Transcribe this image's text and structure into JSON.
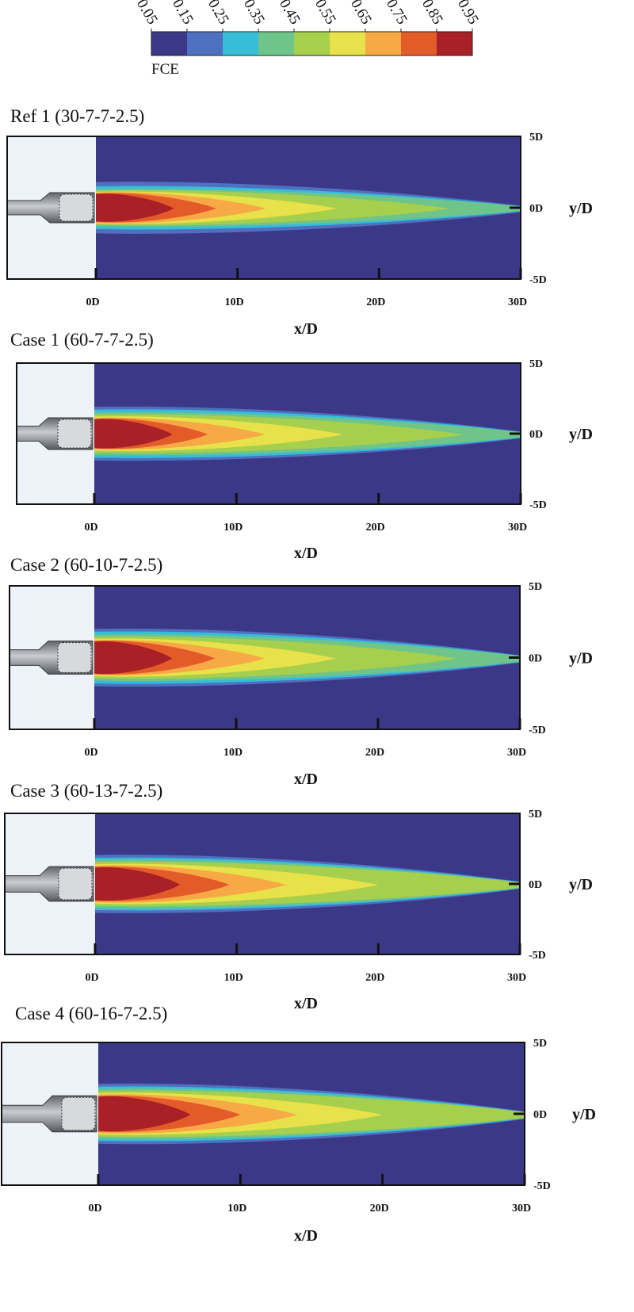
{
  "colorbar": {
    "label": "FCE",
    "ticks": [
      "0.05",
      "0.15",
      "0.25",
      "0.35",
      "0.45",
      "0.55",
      "0.65",
      "0.75",
      "0.85",
      "0.95"
    ],
    "colors": [
      "#3b3987",
      "#4f6fc0",
      "#36bed6",
      "#6fc48a",
      "#a7cf4e",
      "#e7e14a",
      "#f6a944",
      "#e45b2a",
      "#a92026"
    ]
  },
  "chart_data": [
    {
      "type": "heatmap",
      "title": "Ref 1 (30-7-7-2.5)",
      "xlabel": "x/D",
      "ylabel": "y/D",
      "xticks": [
        "0D",
        "10D",
        "20D",
        "30D"
      ],
      "yticks": [
        "5D",
        "0D",
        "-5D"
      ],
      "xlim": [
        0,
        30
      ],
      "ylim": [
        -5,
        5
      ],
      "nozzle_scale": 1.0,
      "contours": [
        {
          "level": 0.15,
          "length": 30.0,
          "halfwidth": 1.8
        },
        {
          "level": 0.25,
          "length": 30.0,
          "halfwidth": 1.5
        },
        {
          "level": 0.35,
          "length": 30.0,
          "halfwidth": 1.3
        },
        {
          "level": 0.45,
          "length": 25.0,
          "halfwidth": 1.2
        },
        {
          "level": 0.55,
          "length": 17.0,
          "halfwidth": 1.1
        },
        {
          "level": 0.65,
          "length": 12.0,
          "halfwidth": 1.05
        },
        {
          "level": 0.75,
          "length": 8.5,
          "halfwidth": 1.0
        },
        {
          "level": 0.85,
          "length": 5.5,
          "halfwidth": 0.95
        },
        {
          "level": 0.95,
          "length": 3.2,
          "halfwidth": 0.85
        }
      ]
    },
    {
      "type": "heatmap",
      "title": "Case 1 (60-7-7-2.5)",
      "xlabel": "x/D",
      "ylabel": "y/D",
      "xticks": [
        "0D",
        "10D",
        "20D",
        "30D"
      ],
      "yticks": [
        "5D",
        "0D",
        "-5D"
      ],
      "xlim": [
        0,
        30
      ],
      "ylim": [
        -5,
        5
      ],
      "nozzle_scale": 1.05,
      "contours": [
        {
          "level": 0.15,
          "length": 30.0,
          "halfwidth": 1.9
        },
        {
          "level": 0.25,
          "length": 30.0,
          "halfwidth": 1.7
        },
        {
          "level": 0.35,
          "length": 30.0,
          "halfwidth": 1.5
        },
        {
          "level": 0.45,
          "length": 26.0,
          "halfwidth": 1.35
        },
        {
          "level": 0.55,
          "length": 17.5,
          "halfwidth": 1.2
        },
        {
          "level": 0.65,
          "length": 12.0,
          "halfwidth": 1.1
        },
        {
          "level": 0.75,
          "length": 8.0,
          "halfwidth": 1.05
        },
        {
          "level": 0.85,
          "length": 5.5,
          "halfwidth": 1.0
        },
        {
          "level": 0.95,
          "length": 3.0,
          "halfwidth": 0.9
        }
      ]
    },
    {
      "type": "heatmap",
      "title": "Case 2 (60-10-7-2.5)",
      "xlabel": "x/D",
      "ylabel": "y/D",
      "xticks": [
        "0D",
        "10D",
        "20D",
        "30D"
      ],
      "yticks": [
        "5D",
        "0D",
        "-5D"
      ],
      "xlim": [
        0,
        30
      ],
      "ylim": [
        -5,
        5
      ],
      "nozzle_scale": 1.1,
      "contours": [
        {
          "level": 0.15,
          "length": 30.0,
          "halfwidth": 2.0
        },
        {
          "level": 0.25,
          "length": 30.0,
          "halfwidth": 1.8
        },
        {
          "level": 0.35,
          "length": 30.0,
          "halfwidth": 1.6
        },
        {
          "level": 0.45,
          "length": 25.5,
          "halfwidth": 1.45
        },
        {
          "level": 0.55,
          "length": 17.0,
          "halfwidth": 1.3
        },
        {
          "level": 0.65,
          "length": 12.0,
          "halfwidth": 1.2
        },
        {
          "level": 0.75,
          "length": 8.5,
          "halfwidth": 1.15
        },
        {
          "level": 0.85,
          "length": 5.5,
          "halfwidth": 1.1
        },
        {
          "level": 0.95,
          "length": 3.3,
          "halfwidth": 1.0
        }
      ]
    },
    {
      "type": "heatmap",
      "title": "Case 3 (60-13-7-2.5)",
      "xlabel": "x/D",
      "ylabel": "y/D",
      "xticks": [
        "0D",
        "10D",
        "20D",
        "30D"
      ],
      "yticks": [
        "5D",
        "0D",
        "-5D"
      ],
      "xlim": [
        0,
        30
      ],
      "ylim": [
        -5,
        5
      ],
      "nozzle_scale": 1.15,
      "contours": [
        {
          "level": 0.15,
          "length": 30.0,
          "halfwidth": 2.05
        },
        {
          "level": 0.25,
          "length": 30.0,
          "halfwidth": 1.85
        },
        {
          "level": 0.35,
          "length": 30.0,
          "halfwidth": 1.7
        },
        {
          "level": 0.45,
          "length": 30.0,
          "halfwidth": 1.55
        },
        {
          "level": 0.55,
          "length": 20.0,
          "halfwidth": 1.4
        },
        {
          "level": 0.65,
          "length": 13.5,
          "halfwidth": 1.3
        },
        {
          "level": 0.75,
          "length": 9.5,
          "halfwidth": 1.2
        },
        {
          "level": 0.85,
          "length": 6.0,
          "halfwidth": 1.15
        },
        {
          "level": 0.95,
          "length": 3.5,
          "halfwidth": 1.05
        }
      ]
    },
    {
      "type": "heatmap",
      "title": "Case 4 (60-16-7-2.5)",
      "xlabel": "x/D",
      "ylabel": "y/D",
      "xticks": [
        "0D",
        "10D",
        "20D",
        "30D"
      ],
      "yticks": [
        "5D",
        "0D",
        "-5D"
      ],
      "xlim": [
        0,
        30
      ],
      "ylim": [
        -5,
        5
      ],
      "nozzle_scale": 1.2,
      "contours": [
        {
          "level": 0.15,
          "length": 30.0,
          "halfwidth": 2.1
        },
        {
          "level": 0.25,
          "length": 30.0,
          "halfwidth": 1.9
        },
        {
          "level": 0.35,
          "length": 30.0,
          "halfwidth": 1.75
        },
        {
          "level": 0.45,
          "length": 30.0,
          "halfwidth": 1.6
        },
        {
          "level": 0.55,
          "length": 20.0,
          "halfwidth": 1.45
        },
        {
          "level": 0.65,
          "length": 14.0,
          "halfwidth": 1.35
        },
        {
          "level": 0.75,
          "length": 10.0,
          "halfwidth": 1.25
        },
        {
          "level": 0.85,
          "length": 6.5,
          "halfwidth": 1.2
        },
        {
          "level": 0.95,
          "length": 3.8,
          "halfwidth": 1.1
        }
      ]
    }
  ]
}
